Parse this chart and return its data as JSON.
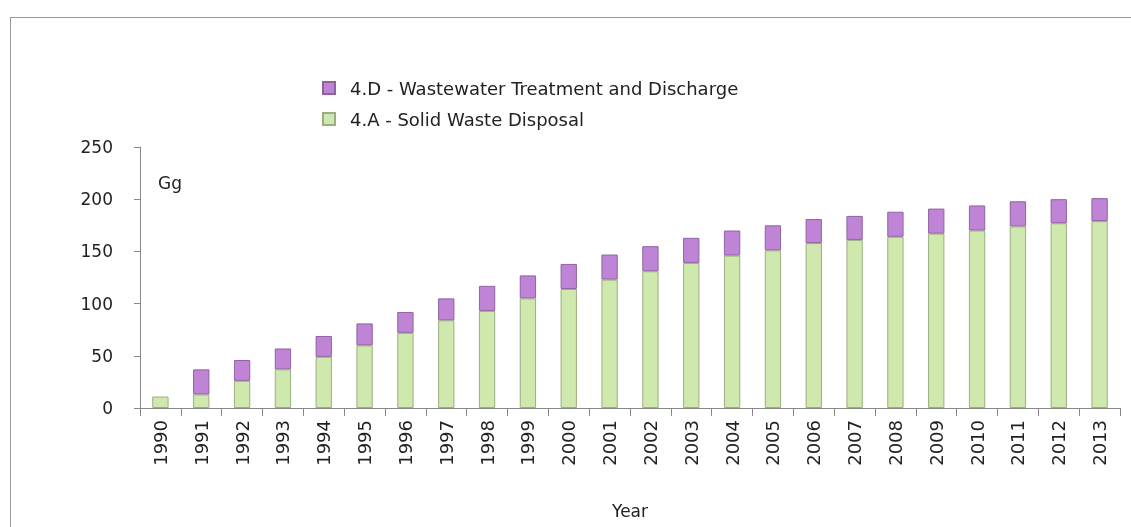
{
  "chart_data": {
    "type": "bar",
    "stacked": true,
    "xlabel": "Year",
    "ylabel": "Gg",
    "categories": [
      "1990",
      "1991",
      "1992",
      "1993",
      "1994",
      "1995",
      "1996",
      "1997",
      "1998",
      "1999",
      "2000",
      "2001",
      "2002",
      "2003",
      "2004",
      "2005",
      "2006",
      "2007",
      "2008",
      "2009",
      "2010",
      "2011",
      "2012",
      "2013"
    ],
    "series": [
      {
        "name": "4.A - Solid Waste Disposal",
        "color": "#cfe8ad",
        "values": [
          11,
          13,
          26,
          37,
          49,
          60,
          72,
          84,
          93,
          105,
          114,
          123,
          131,
          139,
          146,
          151,
          158,
          161,
          164,
          167,
          170,
          174,
          177,
          179
        ]
      },
      {
        "name": "4.D - Wastewater Treatment and Discharge",
        "color": "#bf84d6",
        "values": [
          null,
          24,
          20,
          20,
          20,
          21,
          20,
          21,
          24,
          22,
          24,
          24,
          24,
          24,
          24,
          24,
          23,
          23,
          24,
          24,
          24,
          24,
          23,
          22
        ]
      }
    ],
    "ylim": [
      0,
      250
    ],
    "yticks": [
      0,
      50,
      100,
      150,
      200,
      250
    ],
    "grid": false,
    "legend": "top"
  }
}
